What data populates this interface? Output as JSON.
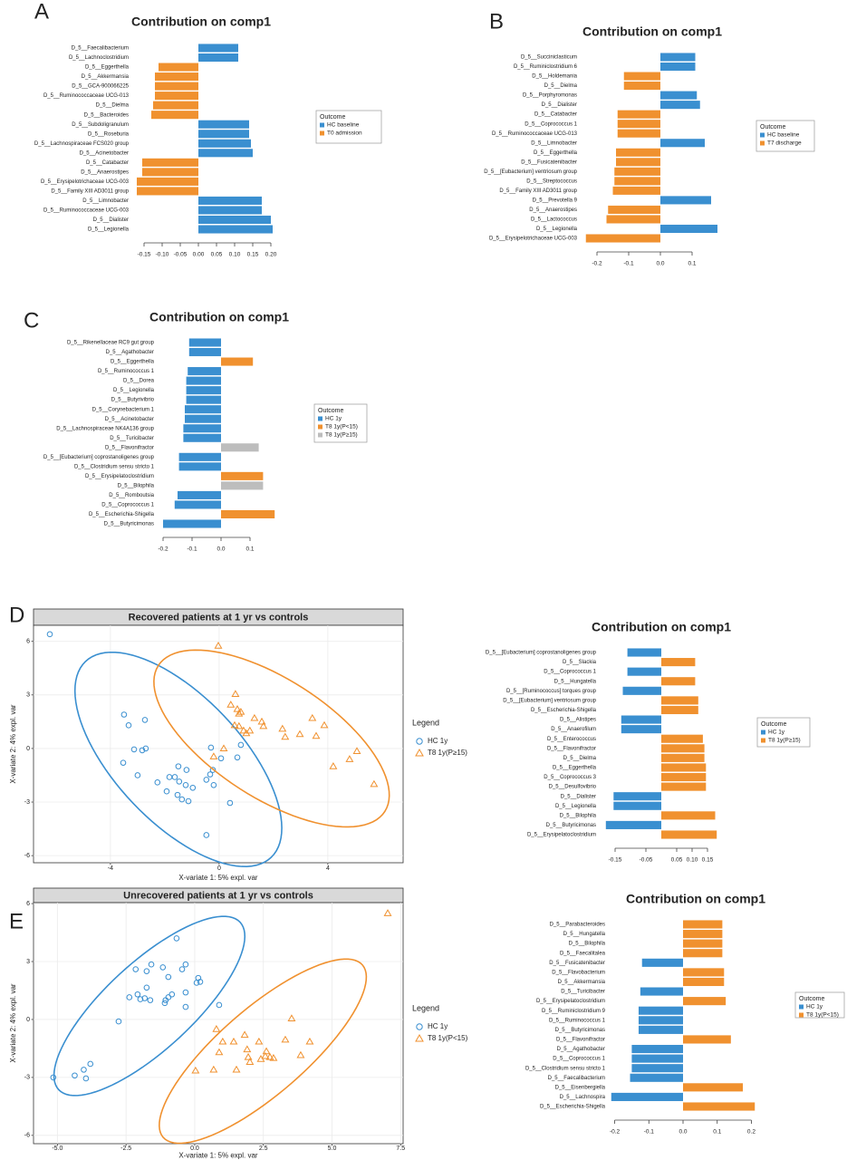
{
  "chart_data": [
    {
      "type": "barh",
      "panel": "A",
      "title": "Contribution on comp1",
      "legend_title": "Outcome",
      "categories": [
        "D_5__Faecalibacterium",
        "D_5__Lachnoclostridium",
        "D_5__Eggerthella",
        "D_5__Akkermansia",
        "D_5__GCA-900066225",
        "D_5__Ruminococcaceae UCG-013",
        "D_5__Dielma",
        "D_5__Bacteroides",
        "D_5__Subdoligranulum",
        "D_5__Roseburia",
        "D_5__Lachnospiraceae FCS020 group",
        "D_5__Acinetobacter",
        "D_5__Catabacter",
        "D_5__Anaerostipes",
        "D_5__Erysipelotrichaceae UCG-003",
        "D_5__Family XIII AD3011 group",
        "D_5__Limnobacter",
        "D_5__Ruminococcaceae UCG-003",
        "D_5__Dialister",
        "D_5__Legionella"
      ],
      "series": [
        {
          "name": "HC baseline",
          "color": "#3a8fd0",
          "values": [
            0.11,
            0.11,
            null,
            null,
            null,
            null,
            null,
            null,
            0.14,
            0.14,
            0.145,
            0.15,
            null,
            null,
            null,
            null,
            0.175,
            0.175,
            0.2,
            0.205
          ]
        },
        {
          "name": "T0 admission",
          "color": "#f0912f",
          "values": [
            null,
            null,
            -0.11,
            -0.12,
            -0.12,
            -0.12,
            -0.125,
            -0.13,
            null,
            null,
            null,
            null,
            -0.155,
            -0.155,
            -0.17,
            -0.17,
            null,
            null,
            null,
            null
          ]
        }
      ],
      "xlim": [
        -0.17,
        0.21
      ],
      "xticks": [
        -0.15,
        {
          "value": -0.1,
          "label": "-0.10"
        },
        -0.05,
        {
          "value": 0,
          "label": "0.00"
        },
        0.05,
        {
          "value": 0.1,
          "label": "0.10"
        },
        0.15,
        {
          "value": 0.2,
          "label": "0.20"
        }
      ]
    },
    {
      "type": "barh",
      "panel": "B",
      "title": "Contribution on comp1",
      "legend_title": "Outcome",
      "categories": [
        "D_5__Succiniclasticum",
        "D_5__Ruminiclostridium 6",
        "D_5__Holdemania",
        "D_5__Dielma",
        "D_5__Porphyromonas",
        "D_5__Dialister",
        "D_5__Catabacter",
        "D_5__Coprococcus 1",
        "D_5__Ruminococcaceae UCG-013",
        "D_5__Limnobacter",
        "D_5__Eggerthella",
        "D_5__Fusicatenibacter",
        "D_5__[Eubacterium] ventriosum group",
        "D_5__Streptococcus",
        "D_5__Family XIII AD3011 group",
        "D_5__Prevotella 9",
        "D_5__Anaerostipes",
        "D_5__Lactococcus",
        "D_5__Legionella",
        "D_5__Erysipelotrichaceae UCG-003"
      ],
      "series": [
        {
          "name": "HC baseline",
          "color": "#3a8fd0",
          "values": [
            0.11,
            0.11,
            null,
            null,
            0.115,
            0.125,
            null,
            null,
            null,
            0.14,
            null,
            null,
            null,
            null,
            null,
            0.16,
            null,
            null,
            0.18,
            null
          ]
        },
        {
          "name": "T7 discharge",
          "color": "#f0912f",
          "values": [
            null,
            null,
            -0.115,
            -0.115,
            null,
            null,
            -0.135,
            -0.135,
            -0.135,
            null,
            -0.14,
            -0.14,
            -0.145,
            -0.145,
            -0.15,
            null,
            -0.165,
            -0.17,
            null,
            -0.235
          ]
        }
      ],
      "xlim": [
        -0.24,
        0.19
      ],
      "xticks": [
        -0.2,
        -0.1,
        {
          "value": 0,
          "label": "0.0"
        },
        0.1
      ]
    },
    {
      "type": "barh",
      "panel": "C",
      "title": "Contribution on comp1",
      "legend_title": "Outcome",
      "categories": [
        "D_5__Rikenellaceae RC9 gut group",
        "D_5__Agathobacter",
        "D_5__Eggerthella",
        "D_5__Ruminococcus 1",
        "D_5__Dorea",
        "D_5__Legionella",
        "D_5__Butyrivibrio",
        "D_5__Corynebacterium 1",
        "D_5__Acinetobacter",
        "D_5__Lachnospiraceae NK4A136 group",
        "D_5__Turicibacter",
        "D_5__Flavonifractor",
        "D_5__[Eubacterium] coprostanoligenes group",
        "D_5__Clostridium sensu stricto 1",
        "D_5__Erysipelatoclostridium",
        "D_5__Bilophila",
        "D_5__Romboutsia",
        "D_5__Coprococcus 1",
        "D_5__Escherichia-Shigella",
        "D_5__Butyricimonas"
      ],
      "series": [
        {
          "name": "HC 1y",
          "color": "#3a8fd0",
          "values": [
            -0.11,
            -0.11,
            null,
            -0.115,
            -0.12,
            -0.12,
            -0.12,
            -0.125,
            -0.125,
            -0.13,
            -0.13,
            null,
            -0.145,
            -0.145,
            null,
            null,
            -0.15,
            -0.16,
            null,
            -0.2
          ]
        },
        {
          "name": "T8 1y(P<15)",
          "color": "#f0912f",
          "values": [
            null,
            null,
            0.11,
            null,
            null,
            null,
            null,
            null,
            null,
            null,
            null,
            null,
            null,
            null,
            0.145,
            null,
            null,
            null,
            0.185,
            null
          ]
        },
        {
          "name": "T8 1y(P≥15)",
          "color": "#bdbdbd",
          "values": [
            null,
            null,
            null,
            null,
            null,
            null,
            null,
            null,
            null,
            null,
            null,
            0.13,
            null,
            null,
            null,
            0.145,
            null,
            null,
            null,
            null
          ]
        }
      ],
      "xlim": [
        -0.21,
        0.2
      ],
      "xticks": [
        -0.2,
        -0.1,
        {
          "value": 0,
          "label": "0.0"
        },
        0.1
      ]
    },
    {
      "type": "scatter",
      "panel": "D",
      "title": "Recovered patients at 1 yr vs controls",
      "legend_title": "Legend",
      "xlabel": "X-variate 1: 5% expl. var",
      "ylabel": "X-variate 2: 4% expl. var",
      "xlim": [
        -6.83,
        6.77
      ],
      "ylim": [
        -6.4,
        6.9
      ],
      "xticks": [
        -4,
        0,
        4
      ],
      "yticks": [
        -6,
        -3,
        0,
        3,
        6
      ],
      "grid": true,
      "series": [
        {
          "name": "HC 1y",
          "color": "#3a8fd0",
          "marker": "circle",
          "x": [
            -6.23,
            -3.5,
            -2.73,
            -3.33,
            -2.7,
            -3.13,
            -2.83,
            -3.53,
            -3.0,
            -2.27,
            -1.83,
            -1.93,
            -1.63,
            -1.5,
            -1.2,
            -1.47,
            -1.53,
            -1.37,
            -1.13,
            -1.23,
            -0.97,
            -0.47,
            -0.33,
            -0.23,
            -0.2,
            -0.3,
            0.07,
            0.67,
            0.8,
            0.4,
            -0.47
          ],
          "y": [
            6.4,
            1.9,
            1.6,
            1.3,
            0,
            -0.05,
            -0.1,
            -0.8,
            -1.5,
            -1.9,
            -1.6,
            -2.4,
            -1.6,
            -1.0,
            -1.2,
            -1.85,
            -2.6,
            -2.85,
            -2.95,
            -2.05,
            -2.2,
            -1.75,
            -1.45,
            -1.2,
            -2.05,
            0.05,
            -0.55,
            -0.5,
            0.2,
            -3.05,
            -4.85
          ],
          "ellipse": {
            "center": [
              -1.5,
              -0.61
            ],
            "u": [
              3.42,
              -5.48
            ],
            "v": [
              1.67,
              2.45
            ]
          }
        },
        {
          "name": "T8 1y(P≥15)",
          "color": "#f0912f",
          "marker": "triangle",
          "x": [
            -0.03,
            0.6,
            0.43,
            0.67,
            0.73,
            0.8,
            0.57,
            0.73,
            0.9,
            1.0,
            1.13,
            1.3,
            1.57,
            1.63,
            0.17,
            -0.2,
            2.33,
            2.43,
            2.97,
            3.43,
            3.57,
            3.87,
            4.2,
            4.8,
            5.07,
            5.7
          ],
          "y": [
            5.75,
            3.05,
            2.45,
            2.2,
            1.95,
            2.05,
            1.3,
            1.25,
            1.0,
            0.85,
            1.0,
            1.7,
            1.5,
            1.25,
            0,
            -0.45,
            1.1,
            0.65,
            0.8,
            1.7,
            0.7,
            1.3,
            -1.0,
            -0.6,
            -0.15,
            -2.0
          ],
          "ellipse": {
            "center": [
              1.93,
              0.56
            ],
            "u": [
              4.17,
              -4.08
            ],
            "v": [
              1.17,
              2.81
            ]
          }
        }
      ]
    },
    {
      "type": "barh",
      "title": "Contribution on comp1",
      "legend_title": "Outcome",
      "categories": [
        "D_5__[Eubacterium] coprostanoligenes group",
        "D_5__Slackia",
        "D_5__Coprococcus 1",
        "D_5__Hungatella",
        "D_5__[Ruminococcus] torques group",
        "D_5__[Eubacterium] ventriosum group",
        "D_5__Escherichia-Shigella",
        "D_5__Alistipes",
        "D_5__Anaerofilum",
        "D_5__Enterococcus",
        "D_5__Flavonifractor",
        "D_5__Dielma",
        "D_5__Eggerthella",
        "D_5__Coprococcus 3",
        "D_5__Desulfovibrio",
        "D_5__Dialister",
        "D_5__Legionella",
        "D_5__Bilophila",
        "D_5__Butyricimonas",
        "D_5__Erysipelatoclostridium"
      ],
      "series": [
        {
          "name": "HC 1y",
          "color": "#3a8fd0",
          "values": [
            -0.11,
            null,
            -0.11,
            null,
            -0.125,
            null,
            null,
            -0.13,
            -0.13,
            null,
            null,
            null,
            null,
            null,
            null,
            -0.155,
            -0.155,
            null,
            -0.18,
            null
          ]
        },
        {
          "name": "T8 1y(P≥15)",
          "color": "#f0912f",
          "values": [
            null,
            0.11,
            null,
            0.11,
            null,
            0.12,
            0.12,
            null,
            null,
            0.135,
            0.14,
            0.14,
            0.145,
            0.145,
            0.145,
            null,
            null,
            0.175,
            null,
            0.18
          ]
        }
      ],
      "xlim": [
        -0.19,
        0.19
      ],
      "xticks": [
        -0.15,
        -0.05,
        0.05,
        {
          "value": 0.1,
          "label": "0.10"
        },
        0.15
      ]
    },
    {
      "type": "scatter",
      "panel": "E",
      "title": "Unrecovered patients at 1 yr vs controls",
      "legend_title": "Legend",
      "xlabel": "X-variate 1: 5% expl. var",
      "ylabel": "X-variate 2: 4% expl. var",
      "xlim": [
        -5.87,
        7.59
      ],
      "ylim": [
        -6.43,
        6.05
      ],
      "xticks": [
        {
          "value": -5,
          "label": "-5.0"
        },
        -2.5,
        {
          "value": 0,
          "label": "0.0"
        },
        2.5,
        {
          "value": 5,
          "label": "5.0"
        },
        7.5
      ],
      "yticks": [
        -6,
        -3,
        0,
        3,
        6
      ],
      "grid": true,
      "series": [
        {
          "name": "HC 1y",
          "color": "#3a8fd0",
          "marker": "circle",
          "x": [
            -0.66,
            -1.58,
            -1.16,
            -0.33,
            -0.46,
            -1.75,
            -2.15,
            0.13,
            0.07,
            0.2,
            -0.96,
            -1.75,
            -0.83,
            -0.96,
            -1.06,
            -1.09,
            -0.33,
            -0.33,
            -2.38,
            -1.98,
            -1.82,
            -2.08,
            -1.62,
            0.89,
            -2.77,
            -3.8,
            -4.04,
            -4.37,
            -3.96,
            -5.15
          ],
          "y": [
            4.2,
            2.85,
            2.7,
            2.85,
            2.6,
            2.5,
            2.6,
            2.15,
            1.9,
            1.95,
            2.2,
            1.65,
            1.3,
            1.15,
            1.0,
            0.85,
            1.4,
            0.65,
            1.15,
            1.05,
            1.1,
            1.3,
            1.0,
            0.75,
            -0.1,
            -2.3,
            -2.6,
            -2.9,
            -3.05,
            -3.0
          ],
          "ellipse": {
            "center": [
              -1.65,
              0.7
            ],
            "u": [
              3.3,
              4.34
            ],
            "v": [
              1.09,
              -1.64
            ]
          }
        },
        {
          "name": "T8 1y(P<15)",
          "color": "#f0912f",
          "marker": "triangle",
          "x": [
            0.79,
            1.02,
            1.82,
            3.53,
            3.3,
            4.19,
            2.34,
            1.91,
            1.42,
            1.95,
            2.01,
            2.41,
            2.57,
            2.74,
            2.87,
            2.61,
            0.89,
            0.03,
            0.69,
            1.52,
            3.86,
            7.03
          ],
          "y": [
            -0.5,
            -1.15,
            -0.8,
            0.05,
            -1.05,
            -1.15,
            -1.15,
            -1.55,
            -1.15,
            -1.95,
            -2.2,
            -2.05,
            -1.9,
            -1.95,
            -2.0,
            -1.65,
            -1.7,
            -2.65,
            -2.6,
            -2.6,
            -1.85,
            5.5
          ],
          "ellipse": {
            "center": [
              2.48,
              -1.64
            ],
            "u": [
              3.63,
              4.46
            ],
            "v": [
              1.02,
              -1.69
            ]
          }
        }
      ]
    },
    {
      "type": "barh",
      "title": "Contribution on comp1",
      "legend_title": "Outcome",
      "categories": [
        "D_5__Parabacteroides",
        "D_5__Hungatella",
        "D_5__Bilophila",
        "D_5__Faecalitalea",
        "D_5__Fusicatenibacter",
        "D_5__Flavobacterium",
        "D_5__Akkermansia",
        "D_5__Turicibacter",
        "D_5__Erysipelatoclostridium",
        "D_5__Ruminiclostridium 9",
        "D_5__Ruminococcus 1",
        "D_5__Butyricimonas",
        "D_5__Flavonifractor",
        "D_5__Agathobacter",
        "D_5__Coprococcus 1",
        "D_5__Clostridium sensu stricto 1",
        "D_5__Faecalibacterium",
        "D_5__Eisenbergiella",
        "D_5__Lachnospira",
        "D_5__Escherichia-Shigella"
      ],
      "series": [
        {
          "name": "HC 1y",
          "color": "#3a8fd0",
          "values": [
            null,
            null,
            null,
            null,
            -0.12,
            null,
            null,
            -0.125,
            null,
            -0.13,
            -0.13,
            -0.13,
            null,
            -0.15,
            -0.15,
            -0.15,
            -0.155,
            null,
            -0.21,
            null
          ]
        },
        {
          "name": "T8 1y(P<15)",
          "color": "#f0912f",
          "values": [
            0.115,
            0.115,
            0.115,
            0.115,
            null,
            0.12,
            0.12,
            null,
            0.125,
            null,
            null,
            null,
            0.14,
            null,
            null,
            null,
            null,
            0.175,
            null,
            0.21
          ]
        }
      ],
      "xlim": [
        -0.22,
        0.22
      ],
      "xticks": [
        -0.2,
        -0.1,
        {
          "value": 0,
          "label": "0.0"
        },
        0.1,
        0.2
      ]
    }
  ]
}
